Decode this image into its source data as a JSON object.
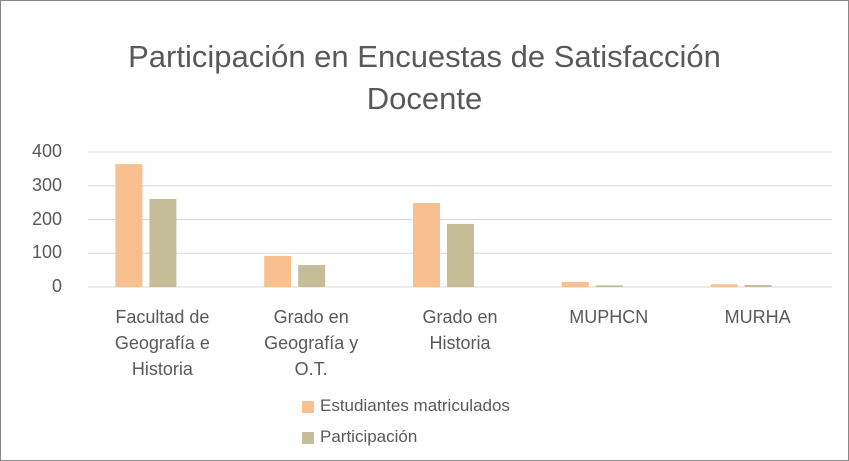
{
  "chart_data": {
    "type": "bar",
    "title": "Participación en Encuestas de Satisfacción Docente",
    "categories": [
      "Facultad de Geografía e Historia",
      "Grado en Geografía y O.T.",
      "Grado en Historia",
      "MUPHCN",
      "MURHA"
    ],
    "series": [
      {
        "name": "Estudiantes matriculados",
        "color": "#f8bf8f",
        "values": [
          364,
          92,
          249,
          15,
          8
        ]
      },
      {
        "name": "Participación",
        "color": "#c4bd97",
        "values": [
          261,
          65,
          187,
          5,
          6
        ]
      }
    ],
    "ylim": [
      0,
      400
    ],
    "yticks": [
      0,
      100,
      200,
      300,
      400
    ],
    "grid": true,
    "legend": "bottom"
  }
}
